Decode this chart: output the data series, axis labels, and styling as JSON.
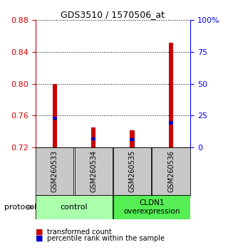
{
  "title": "GDS3510 / 1570506_at",
  "samples": [
    "GSM260533",
    "GSM260534",
    "GSM260535",
    "GSM260536"
  ],
  "red_values": [
    0.8,
    0.745,
    0.742,
    0.852
  ],
  "blue_values": [
    0.757,
    0.731,
    0.73,
    0.751
  ],
  "ymin": 0.72,
  "ymax": 0.88,
  "yticks_left": [
    0.72,
    0.76,
    0.8,
    0.84,
    0.88
  ],
  "yticks_right": [
    0,
    25,
    50,
    75,
    100
  ],
  "yright_labels": [
    "0",
    "25",
    "50",
    "75",
    "100%"
  ],
  "bar_width": 0.12,
  "red_color": "#CC0000",
  "blue_color": "#0000CC",
  "control_color": "#AAFFAA",
  "overexp_color": "#55EE55",
  "sample_box_color": "#C8C8C8",
  "legend_red": "transformed count",
  "legend_blue": "percentile rank within the sample",
  "protocol_label": "protocol"
}
